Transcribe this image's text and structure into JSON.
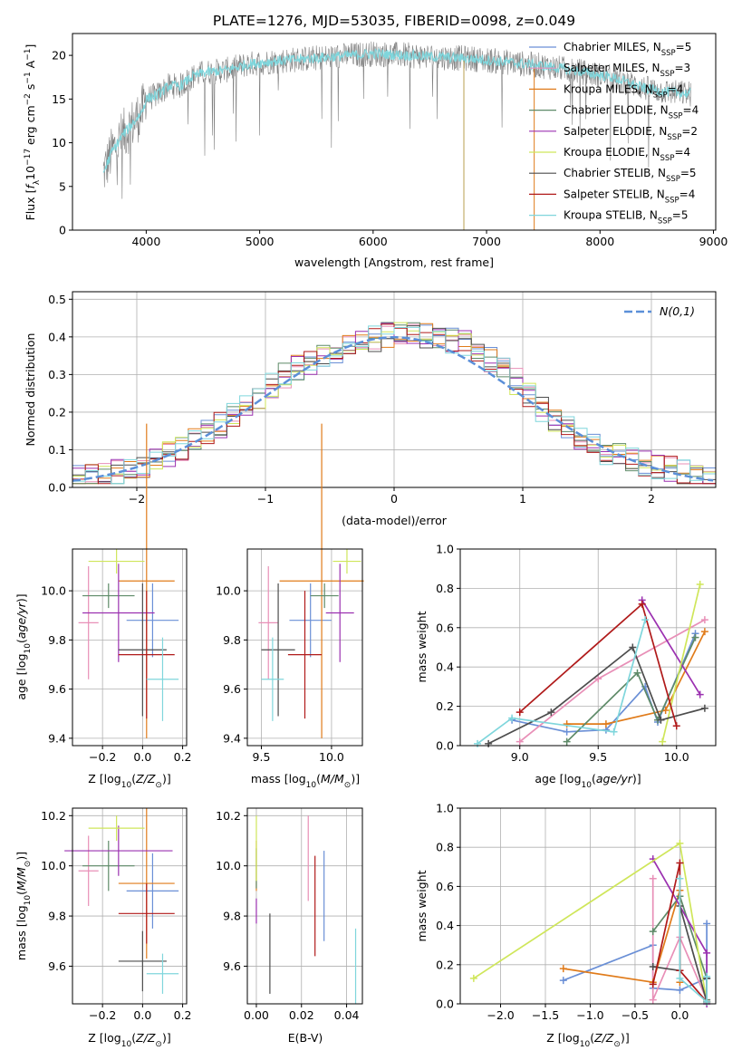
{
  "title": "PLATE=1276, MJD=53035, FIBERID=0098, z=0.049",
  "colors": {
    "Chabrier MILES": "#6a8fd6",
    "Salpeter MILES": "#e88fb7",
    "Kroupa MILES": "#e07b1a",
    "Chabrier ELODIE": "#5e8a68",
    "Salpeter ELODIE": "#9b30b0",
    "Kroupa ELODIE": "#cfe65a",
    "Chabrier STELIB": "#4d4d4d",
    "Salpeter STELIB": "#b01a1a",
    "Kroupa STELIB": "#7fd6dc",
    "data": "#808080",
    "gaussian": "#5b8fd8"
  },
  "chart_data": [
    {
      "id": "spectrum",
      "type": "line",
      "xlabel": "wavelength [Angstrom, rest frame]",
      "ylabel": "Flux [f_λ10^-17 erg cm^-2 s^-1 A^-1]",
      "xlim": [
        3350,
        9020
      ],
      "ylim": [
        0,
        22.5
      ],
      "xticks": [
        4000,
        5000,
        6000,
        7000,
        8000,
        9000
      ],
      "yticks": [
        0,
        5,
        10,
        15,
        20
      ],
      "grid": false,
      "legend_position": "top-right",
      "legend": [
        {
          "model": "Chabrier MILES",
          "n_ssp": "5"
        },
        {
          "model": "Salpeter MILES",
          "n_ssp": "3"
        },
        {
          "model": "Kroupa MILES",
          "n_ssp": "4"
        },
        {
          "model": "Chabrier ELODIE",
          "n_ssp": "4"
        },
        {
          "model": "Salpeter ELODIE",
          "n_ssp": "2"
        },
        {
          "model": "Kroupa ELODIE",
          "n_ssp": "4"
        },
        {
          "model": "Chabrier STELIB",
          "n_ssp": "5"
        },
        {
          "model": "Salpeter STELIB",
          "n_ssp": "4"
        },
        {
          "model": "Kroupa STELIB",
          "n_ssp": "5"
        }
      ],
      "continuum": {
        "x": [
          3620,
          3700,
          3800,
          3900,
          3960,
          4000,
          4100,
          4200,
          4300,
          4400,
          4500,
          4700,
          4900,
          5100,
          5300,
          5500,
          5800,
          6000,
          6300,
          6600,
          6900,
          7200,
          7500,
          7800,
          8100,
          8400,
          8600,
          8800
        ],
        "y": [
          6.5,
          9,
          11,
          12.5,
          13.5,
          15,
          15.5,
          16.5,
          16.5,
          17.5,
          18,
          18.3,
          19,
          19.3,
          19.5,
          19.7,
          20,
          20.2,
          20,
          19.8,
          19.6,
          19.2,
          18.8,
          18.2,
          17.5,
          16.2,
          15.8,
          15.6
        ]
      }
    },
    {
      "id": "residuals",
      "type": "line",
      "xlabel": "(data-model)/error",
      "ylabel": "Normed distribution",
      "xlim": [
        -2.5,
        2.5
      ],
      "ylim": [
        0,
        0.52
      ],
      "xticks": [
        -2,
        -1,
        0,
        1,
        2
      ],
      "yticks": [
        0.0,
        0.1,
        0.2,
        0.3,
        0.4,
        0.5
      ],
      "grid": true,
      "legend_position": "top-right",
      "legend_label": "N(0,1)",
      "reference_curve": {
        "mean": 0,
        "sigma": 1
      },
      "bin_width": 0.1,
      "histogram_envelope": {
        "x": [
          -2.5,
          -2.0,
          -1.6,
          -1.2,
          -0.8,
          -0.4,
          0.0,
          0.3,
          0.6,
          0.9,
          1.2,
          1.6,
          2.0,
          2.5
        ],
        "y": [
          0.025,
          0.05,
          0.11,
          0.2,
          0.31,
          0.37,
          0.41,
          0.4,
          0.38,
          0.3,
          0.19,
          0.1,
          0.06,
          0.02
        ]
      }
    },
    {
      "id": "age-vs-Z",
      "type": "scatter",
      "xlabel": "Z [log10(Z/Z⊙)]",
      "ylabel": "age [log10(age/yr)]",
      "xlim": [
        -0.35,
        0.22
      ],
      "ylim": [
        9.37,
        10.17
      ],
      "xticks": [
        -0.2,
        0.0,
        0.2
      ],
      "yticks": [
        9.4,
        9.6,
        9.8,
        10.0
      ],
      "grid": true,
      "points": [
        {
          "model": "Chabrier MILES",
          "x": 0.05,
          "y": 9.88,
          "xerr": 0.13,
          "yerr": 0.15
        },
        {
          "model": "Salpeter MILES",
          "x": -0.27,
          "y": 9.87,
          "xerr": 0.05,
          "yerr": 0.23
        },
        {
          "model": "Kroupa MILES",
          "x": 0.02,
          "y": 10.04,
          "xerr": 0.14,
          "yerr": 0.64
        },
        {
          "model": "Chabrier ELODIE",
          "x": -0.17,
          "y": 9.98,
          "xerr": 0.13,
          "yerr": 0.05
        },
        {
          "model": "Salpeter ELODIE",
          "x": -0.12,
          "y": 9.91,
          "xerr": 0.18,
          "yerr": 0.2
        },
        {
          "model": "Kroupa ELODIE",
          "x": -0.13,
          "y": 10.12,
          "xerr": 0.14,
          "yerr": 0.05
        },
        {
          "model": "Chabrier STELIB",
          "x": 0.0,
          "y": 9.76,
          "xerr": 0.12,
          "yerr": 0.27
        },
        {
          "model": "Salpeter STELIB",
          "x": 0.02,
          "y": 9.74,
          "xerr": 0.14,
          "yerr": 0.26
        },
        {
          "model": "Kroupa STELIB",
          "x": 0.1,
          "y": 9.64,
          "xerr": 0.08,
          "yerr": 0.17
        }
      ]
    },
    {
      "id": "age-vs-mass",
      "type": "scatter",
      "xlabel": "mass [log10(M/M⊙)]",
      "ylabel": "",
      "xlim": [
        9.4,
        10.22
      ],
      "ylim": [
        9.37,
        10.17
      ],
      "xticks": [
        9.5,
        10.0
      ],
      "yticks": [
        9.4,
        9.6,
        9.8,
        10.0
      ],
      "grid": true,
      "points": [
        {
          "model": "Chabrier MILES",
          "x": 9.85,
          "y": 9.88,
          "xerr": 0.15,
          "yerr": 0.15
        },
        {
          "model": "Salpeter MILES",
          "x": 9.55,
          "y": 9.87,
          "xerr": 0.07,
          "yerr": 0.23
        },
        {
          "model": "Kroupa MILES",
          "x": 9.93,
          "y": 10.04,
          "xerr": 0.3,
          "yerr": 0.64
        },
        {
          "model": "Chabrier ELODIE",
          "x": 9.95,
          "y": 9.98,
          "xerr": 0.1,
          "yerr": 0.05
        },
        {
          "model": "Salpeter ELODIE",
          "x": 10.06,
          "y": 9.91,
          "xerr": 0.1,
          "yerr": 0.2
        },
        {
          "model": "Kroupa ELODIE",
          "x": 10.11,
          "y": 10.12,
          "xerr": 0.1,
          "yerr": 0.05
        },
        {
          "model": "Chabrier STELIB",
          "x": 9.62,
          "y": 9.76,
          "xerr": 0.12,
          "yerr": 0.27
        },
        {
          "model": "Salpeter STELIB",
          "x": 9.81,
          "y": 9.74,
          "xerr": 0.12,
          "yerr": 0.26
        },
        {
          "model": "Kroupa STELIB",
          "x": 9.58,
          "y": 9.64,
          "xerr": 0.08,
          "yerr": 0.17
        }
      ]
    },
    {
      "id": "massweight-vs-age",
      "type": "line",
      "xlabel": "age [log10(age/yr)]",
      "ylabel": "mass weight",
      "xlim": [
        8.62,
        10.25
      ],
      "ylim": [
        0,
        1
      ],
      "xticks": [
        9.0,
        9.5,
        10.0
      ],
      "yticks": [
        0.0,
        0.2,
        0.4,
        0.6,
        0.8,
        1.0
      ],
      "grid": true,
      "series": [
        {
          "model": "Chabrier MILES",
          "x": [
            8.95,
            9.3,
            9.55,
            9.8,
            9.88,
            10.12
          ],
          "y": [
            0.13,
            0.07,
            0.08,
            0.3,
            0.12,
            0.57
          ]
        },
        {
          "model": "Salpeter MILES",
          "x": [
            9.0,
            9.5,
            10.18
          ],
          "y": [
            0.02,
            0.34,
            0.64
          ]
        },
        {
          "model": "Kroupa MILES",
          "x": [
            9.3,
            9.55,
            9.93,
            10.18
          ],
          "y": [
            0.11,
            0.11,
            0.18,
            0.58
          ]
        },
        {
          "model": "Chabrier ELODIE",
          "x": [
            9.3,
            9.75,
            9.88,
            10.12
          ],
          "y": [
            0.02,
            0.37,
            0.13,
            0.55
          ]
        },
        {
          "model": "Salpeter ELODIE",
          "x": [
            9.78,
            10.15
          ],
          "y": [
            0.74,
            0.26
          ]
        },
        {
          "model": "Kroupa ELODIE",
          "x": [
            9.91,
            10.15
          ],
          "y": [
            0.02,
            0.82
          ]
        },
        {
          "model": "Chabrier STELIB",
          "x": [
            8.8,
            9.2,
            9.72,
            9.9,
            10.18
          ],
          "y": [
            0.01,
            0.17,
            0.5,
            0.13,
            0.19
          ]
        },
        {
          "model": "Salpeter STELIB",
          "x": [
            9.0,
            9.78,
            10.0
          ],
          "y": [
            0.17,
            0.72,
            0.1
          ]
        },
        {
          "model": "Kroupa STELIB",
          "x": [
            8.73,
            8.95,
            9.6,
            9.8
          ],
          "y": [
            0.01,
            0.14,
            0.07,
            0.64
          ]
        }
      ]
    },
    {
      "id": "mass-vs-Z",
      "type": "scatter",
      "xlabel": "Z [log10(Z/Z⊙)]",
      "ylabel": "mass [log10(M/M⊙)]",
      "xlim": [
        -0.35,
        0.22
      ],
      "ylim": [
        9.45,
        10.23
      ],
      "xticks": [
        -0.2,
        0.0,
        0.2
      ],
      "yticks": [
        9.6,
        9.8,
        10.0,
        10.2
      ],
      "grid": true,
      "points": [
        {
          "model": "Chabrier MILES",
          "x": 0.05,
          "y": 9.9,
          "xerr": 0.13,
          "yerr": 0.15
        },
        {
          "model": "Salpeter MILES",
          "x": -0.27,
          "y": 9.98,
          "xerr": 0.05,
          "yerr": 0.14
        },
        {
          "model": "Kroupa MILES",
          "x": 0.02,
          "y": 9.93,
          "xerr": 0.14,
          "yerr": 0.3
        },
        {
          "model": "Chabrier ELODIE",
          "x": -0.17,
          "y": 10.0,
          "xerr": 0.13,
          "yerr": 0.1
        },
        {
          "model": "Salpeter ELODIE",
          "x": -0.12,
          "y": 10.06,
          "xerr": 0.27,
          "yerr": 0.1
        },
        {
          "model": "Kroupa ELODIE",
          "x": -0.13,
          "y": 10.15,
          "xerr": 0.14,
          "yerr": 0.05
        },
        {
          "model": "Chabrier STELIB",
          "x": 0.0,
          "y": 9.62,
          "xerr": 0.12,
          "yerr": 0.12
        },
        {
          "model": "Salpeter STELIB",
          "x": 0.02,
          "y": 9.81,
          "xerr": 0.14,
          "yerr": 0.12
        },
        {
          "model": "Kroupa STELIB",
          "x": 0.1,
          "y": 9.57,
          "xerr": 0.08,
          "yerr": 0.08
        }
      ]
    },
    {
      "id": "mass-vs-EBV",
      "type": "scatter",
      "xlabel": "E(B-V)",
      "ylabel": "",
      "xlim": [
        -0.004,
        0.047
      ],
      "ylim": [
        9.45,
        10.23
      ],
      "xticks": [
        0.0,
        0.02,
        0.04
      ],
      "yticks": [
        9.6,
        9.8,
        10.0,
        10.2
      ],
      "grid": true,
      "points": [
        {
          "model": "Chabrier MILES",
          "x": 0.03,
          "y": 9.88,
          "xerr": 0,
          "yerr": 0.18
        },
        {
          "model": "Salpeter MILES",
          "x": 0.023,
          "y": 10.03,
          "xerr": 0,
          "yerr": 0.17
        },
        {
          "model": "Kroupa MILES",
          "x": 0.0,
          "y": 10.0,
          "xerr": 0,
          "yerr": 0.1
        },
        {
          "model": "Chabrier ELODIE",
          "x": 0.0,
          "y": 9.99,
          "xerr": 0,
          "yerr": 0.08
        },
        {
          "model": "Salpeter ELODIE",
          "x": 0.0,
          "y": 9.82,
          "xerr": 0,
          "yerr": 0.05
        },
        {
          "model": "Kroupa ELODIE",
          "x": 0.0,
          "y": 10.07,
          "xerr": 0,
          "yerr": 0.13
        },
        {
          "model": "Chabrier STELIB",
          "x": 0.006,
          "y": 9.65,
          "xerr": 0,
          "yerr": 0.16
        },
        {
          "model": "Salpeter STELIB",
          "x": 0.026,
          "y": 9.84,
          "xerr": 0,
          "yerr": 0.2
        },
        {
          "model": "Kroupa STELIB",
          "x": 0.044,
          "y": 9.6,
          "xerr": 0,
          "yerr": 0.15
        }
      ]
    },
    {
      "id": "massweight-vs-Z",
      "type": "line",
      "xlabel": "Z [log10(Z/Z⊙)]",
      "ylabel": "mass weight",
      "xlim": [
        -2.45,
        0.4
      ],
      "ylim": [
        0,
        1
      ],
      "xticks": [
        -2.0,
        -1.5,
        -1.0,
        -0.5,
        0.0
      ],
      "yticks": [
        0.0,
        0.2,
        0.4,
        0.6,
        0.8,
        1.0
      ],
      "grid": true,
      "series": [
        {
          "model": "Chabrier MILES",
          "x": [
            -1.3,
            -0.3,
            -0.3,
            0.0,
            0.3,
            0.3
          ],
          "y": [
            0.12,
            0.3,
            0.08,
            0.07,
            0.13,
            0.41
          ]
        },
        {
          "model": "Salpeter MILES",
          "x": [
            -0.3,
            -0.3,
            0.0,
            0.3
          ],
          "y": [
            0.64,
            0.02,
            0.34,
            0.02
          ]
        },
        {
          "model": "Kroupa MILES",
          "x": [
            -1.3,
            -0.3,
            0.0,
            0.0
          ],
          "y": [
            0.18,
            0.11,
            0.58,
            0.11
          ]
        },
        {
          "model": "Chabrier ELODIE",
          "x": [
            -0.3,
            0.0,
            0.3,
            0.3
          ],
          "y": [
            0.37,
            0.55,
            0.13,
            0.02
          ]
        },
        {
          "model": "Salpeter ELODIE",
          "x": [
            -0.3,
            0.3,
            0.3
          ],
          "y": [
            0.74,
            0.26,
            0.0
          ]
        },
        {
          "model": "Kroupa ELODIE",
          "x": [
            -2.3,
            0.0,
            0.3
          ],
          "y": [
            0.13,
            0.82,
            0.01
          ]
        },
        {
          "model": "Chabrier STELIB",
          "x": [
            -0.3,
            0.0,
            0.0,
            0.3,
            0.3
          ],
          "y": [
            0.19,
            0.17,
            0.5,
            0.01,
            0.13
          ]
        },
        {
          "model": "Salpeter STELIB",
          "x": [
            -0.3,
            0.0,
            0.0,
            0.3
          ],
          "y": [
            0.1,
            0.72,
            0.17,
            0.01
          ]
        },
        {
          "model": "Kroupa STELIB",
          "x": [
            0.0,
            0.0,
            0.3,
            0.3
          ],
          "y": [
            0.64,
            0.13,
            0.01,
            0.14
          ]
        }
      ]
    }
  ]
}
